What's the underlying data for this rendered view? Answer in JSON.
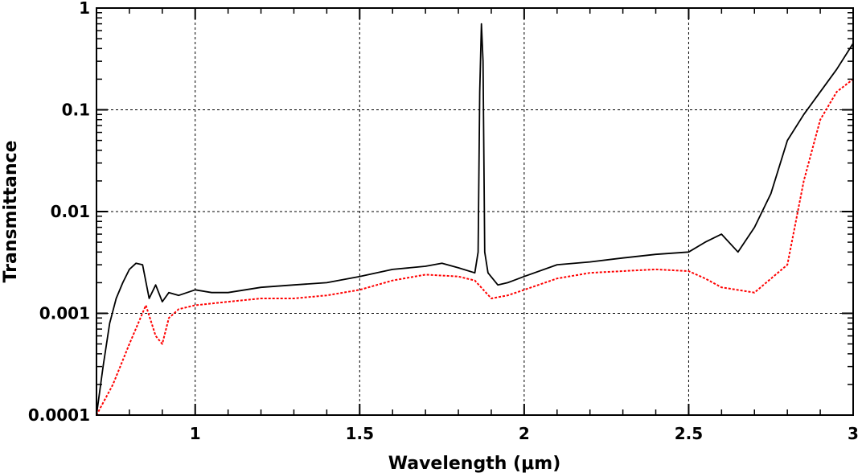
{
  "chart_data": {
    "type": "line",
    "title": "",
    "xlabel": "Wavelength (μm)",
    "ylabel": "Transmittance",
    "xlim": [
      0.7,
      3.0
    ],
    "ylim": [
      0.0001,
      1
    ],
    "yscale": "log",
    "grid": true,
    "legend": "none",
    "x_ticks": [
      1,
      1.5,
      2,
      2.5,
      3
    ],
    "x_tick_labels": [
      "1",
      "1.5",
      "2",
      "2.5",
      "3"
    ],
    "y_ticks": [
      0.0001,
      0.001,
      0.01,
      0.1,
      1
    ],
    "y_tick_labels": [
      "0.0001",
      "0.001",
      "0.01",
      "0.1",
      "1"
    ],
    "series": [
      {
        "color": "#000000",
        "style": "solid",
        "x": [
          0.7,
          0.72,
          0.74,
          0.76,
          0.78,
          0.8,
          0.82,
          0.84,
          0.86,
          0.88,
          0.9,
          0.92,
          0.95,
          1.0,
          1.05,
          1.1,
          1.2,
          1.3,
          1.4,
          1.5,
          1.6,
          1.7,
          1.75,
          1.8,
          1.85,
          1.86,
          1.865,
          1.87,
          1.875,
          1.88,
          1.89,
          1.92,
          1.95,
          2.0,
          2.1,
          2.2,
          2.3,
          2.4,
          2.5,
          2.55,
          2.6,
          2.65,
          2.7,
          2.75,
          2.8,
          2.85,
          2.9,
          2.95,
          3.0
        ],
        "y": [
          0.0001,
          0.0003,
          0.0008,
          0.0014,
          0.002,
          0.0027,
          0.0031,
          0.003,
          0.0014,
          0.0019,
          0.0013,
          0.0016,
          0.0015,
          0.0017,
          0.0016,
          0.0016,
          0.0018,
          0.0019,
          0.002,
          0.0023,
          0.0027,
          0.0029,
          0.0031,
          0.0028,
          0.0025,
          0.004,
          0.15,
          0.7,
          0.3,
          0.004,
          0.0025,
          0.0019,
          0.002,
          0.0023,
          0.003,
          0.0032,
          0.0035,
          0.0038,
          0.004,
          0.005,
          0.006,
          0.004,
          0.007,
          0.015,
          0.05,
          0.09,
          0.15,
          0.25,
          0.45
        ]
      },
      {
        "color": "#ff0000",
        "style": "dotted",
        "x": [
          0.7,
          0.75,
          0.8,
          0.85,
          0.88,
          0.9,
          0.92,
          0.95,
          1.0,
          1.1,
          1.2,
          1.3,
          1.4,
          1.5,
          1.6,
          1.7,
          1.8,
          1.85,
          1.9,
          1.95,
          2.0,
          2.1,
          2.2,
          2.3,
          2.4,
          2.5,
          2.55,
          2.6,
          2.7,
          2.8,
          2.85,
          2.9,
          2.95,
          3.0
        ],
        "y": [
          0.0001,
          0.0002,
          0.0005,
          0.0012,
          0.0006,
          0.0005,
          0.0009,
          0.0011,
          0.0012,
          0.0013,
          0.0014,
          0.0014,
          0.0015,
          0.0017,
          0.0021,
          0.0024,
          0.0023,
          0.0021,
          0.0014,
          0.0015,
          0.0017,
          0.0022,
          0.0025,
          0.0026,
          0.0027,
          0.0026,
          0.0022,
          0.0018,
          0.0016,
          0.003,
          0.02,
          0.08,
          0.15,
          0.2
        ]
      }
    ]
  }
}
